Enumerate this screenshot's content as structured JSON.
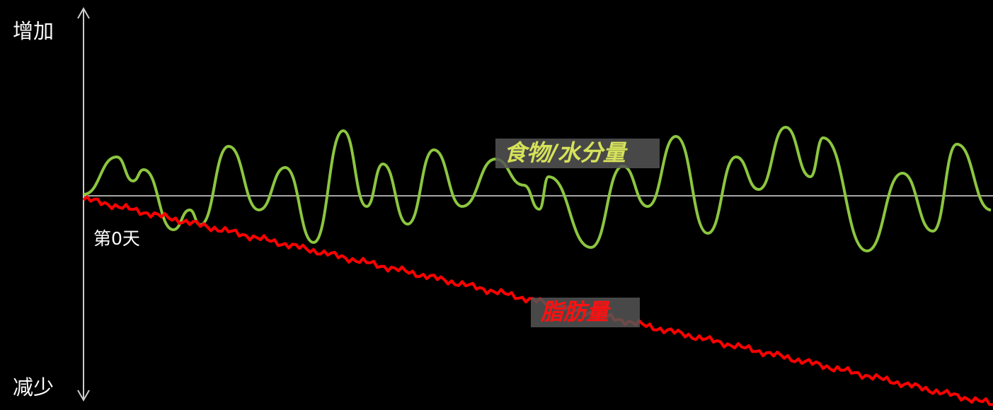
{
  "axis": {
    "top_label": "增加",
    "bottom_label": "减少",
    "origin_label": "第0天"
  },
  "series": [
    {
      "label": "食物/水分量"
    },
    {
      "label": "脂肪量"
    }
  ]
}
